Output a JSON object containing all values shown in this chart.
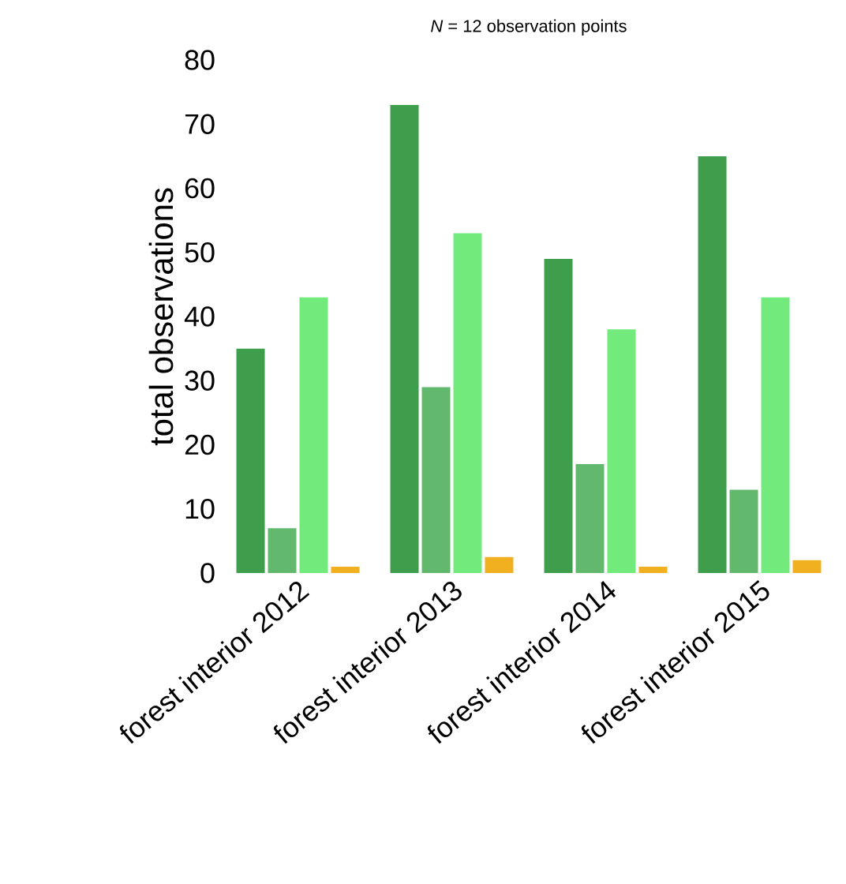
{
  "chart_data": {
    "type": "bar",
    "title": "*N* = 12 observation points",
    "ylabel": "total observations",
    "categories": [
      "forest interior 2012",
      "forest interior 2013",
      "forest interior 2014",
      "forest interior 2015"
    ],
    "series": [
      {
        "color": "#3f9e4c",
        "values": [
          35,
          73,
          49,
          65
        ]
      },
      {
        "color": "#62b96e",
        "values": [
          7,
          29,
          17,
          13
        ]
      },
      {
        "color": "#72ea7c",
        "values": [
          43,
          53,
          38,
          43
        ]
      },
      {
        "color": "#f0b020",
        "values": [
          1,
          2.5,
          1,
          2
        ]
      }
    ],
    "ylim": [
      0,
      80
    ],
    "yticks": [
      0,
      10,
      20,
      30,
      40,
      50,
      60,
      70,
      80
    ]
  }
}
